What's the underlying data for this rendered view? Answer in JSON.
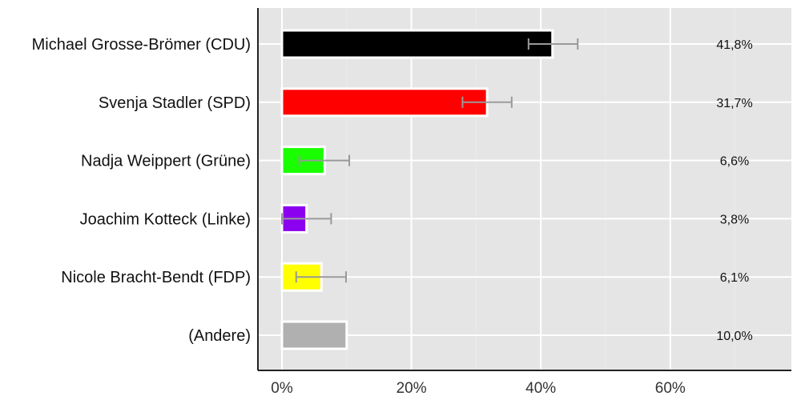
{
  "chart_data": {
    "type": "bar",
    "orientation": "horizontal",
    "title": "",
    "xlabel": "",
    "ylabel": "",
    "xlim": [
      -3.7,
      78.8
    ],
    "x_ticks": [
      0,
      20,
      40,
      60
    ],
    "x_tick_labels": [
      "0%",
      "20%",
      "40%",
      "60%"
    ],
    "grid": true,
    "legend": null,
    "categories": [
      "Michael Grosse-Brömer (CDU)",
      "Svenja Stadler (SPD)",
      "Nadja Weippert (Grüne)",
      "Joachim Kotteck (Linke)",
      "Nicole Bracht-Bendt (FDP)",
      "(Andere)"
    ],
    "values": [
      41.8,
      31.7,
      6.6,
      3.8,
      6.1,
      10.0
    ],
    "value_labels": [
      "41,8%",
      "31,7%",
      "6,6%",
      "3,8%",
      "6,1%",
      "10,0%"
    ],
    "colors": [
      "#000000",
      "#ff0000",
      "#1aff00",
      "#8b00ee",
      "#ffff00",
      "#b0b0b0"
    ],
    "error_bars": [
      {
        "low": 38.1,
        "high": 45.7
      },
      {
        "low": 27.9,
        "high": 35.5
      },
      {
        "low": 2.7,
        "high": 10.4
      },
      {
        "low": 0.0,
        "high": 7.6
      },
      {
        "low": 2.2,
        "high": 9.9
      },
      null
    ]
  },
  "style": {
    "panel_bg": "#e5e5e5",
    "grid_color": "#ffffff",
    "errorbar_color": "#999999",
    "axis_color": "#222222"
  }
}
